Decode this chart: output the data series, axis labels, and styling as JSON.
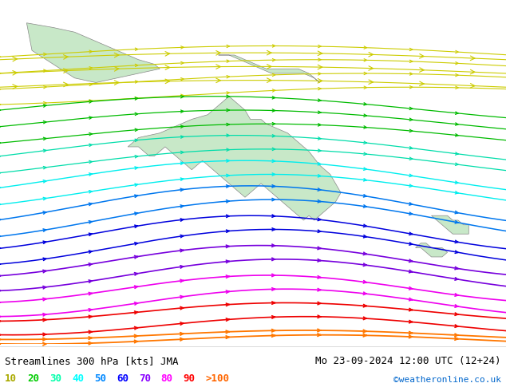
{
  "title": "Streamlines 300 hPa [kts] JMA",
  "date_str": "Mo 23-09-2024 12:00 UTC (12+24)",
  "credit": "©weatheronline.co.uk",
  "legend_values": [
    "10",
    "20",
    "30",
    "40",
    "50",
    "60",
    "70",
    "80",
    "90",
    ">100"
  ],
  "legend_colors": [
    "#aaaa00",
    "#00cc00",
    "#00ffaa",
    "#00ffff",
    "#0088ff",
    "#0000ff",
    "#8800ff",
    "#ff00ff",
    "#ff0000",
    "#ff6600"
  ],
  "bg_color": "#d0d8e8",
  "land_color": "#c8e8c8",
  "streamline_colors": {
    "10": "#cccc00",
    "20": "#00bb00",
    "30": "#00ddaa",
    "40": "#00eeee",
    "50": "#0077ee",
    "60": "#0000dd",
    "70": "#7700dd",
    "80": "#ee00ee",
    "90": "#ee0000",
    "100": "#ff6600"
  },
  "font_size_title": 9,
  "font_size_legend": 9,
  "map_extent": [
    90,
    185,
    -65,
    10
  ],
  "figsize": [
    6.34,
    4.9
  ],
  "dpi": 100
}
